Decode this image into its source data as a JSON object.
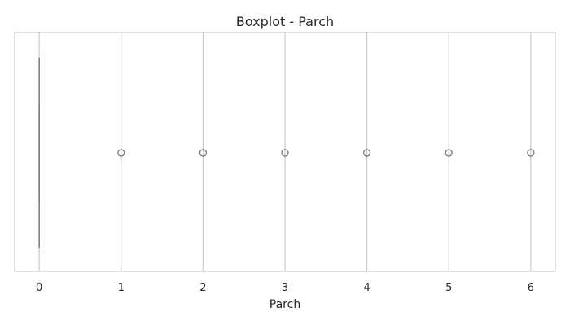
{
  "chart_data": {
    "type": "box",
    "title": "Boxplot - Parch",
    "xlabel": "Parch",
    "ylabel": "",
    "orientation": "horizontal",
    "xlim": [
      -0.3,
      6.3
    ],
    "ticks": [
      0,
      1,
      2,
      3,
      4,
      5,
      6
    ],
    "tick_labels": [
      "0",
      "1",
      "2",
      "3",
      "4",
      "5",
      "6"
    ],
    "grid": "vertical",
    "box": {
      "min": 0,
      "q1": 0,
      "median": 0,
      "q3": 0,
      "max": 0
    },
    "outliers": [
      1,
      2,
      3,
      4,
      5,
      6
    ],
    "colors": {
      "grid": "#cccccc",
      "box": "#808080",
      "text": "#262626",
      "background": "#ffffff"
    }
  }
}
